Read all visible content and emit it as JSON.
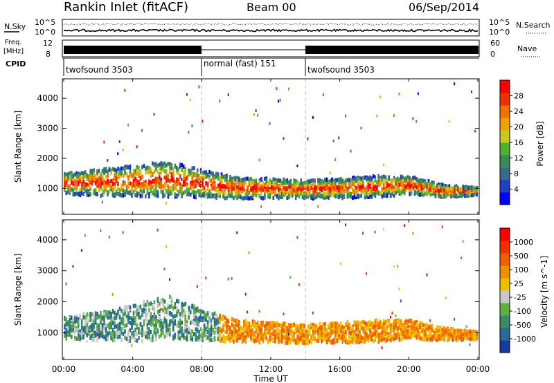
{
  "header": {
    "title": "Rankin Inlet (fitACF)",
    "beam": "Beam 00",
    "date": "06/Sep/2014"
  },
  "status_panel": {
    "nsky_label": "N.Sky",
    "nsearch_label": "N.Search",
    "noise_ticks": [
      "10^5",
      "10^0"
    ],
    "freq_label_1": "Freq.",
    "freq_label_2": "[MHz]",
    "freq_ticks": [
      "12",
      "8"
    ],
    "nave_label": "Nave",
    "nave_ticks": [
      "60",
      "0"
    ],
    "cpid_label": "CPID",
    "cpid_segments": [
      {
        "label": "twofsound 3503",
        "start_h": 0,
        "end_h": 8
      },
      {
        "label": "normal (fast) 151",
        "start_h": 8,
        "end_h": 14
      },
      {
        "label": "twofsound 3503",
        "start_h": 14,
        "end_h": 24
      }
    ]
  },
  "time_axis": {
    "label": "Time UT",
    "ticks": [
      "00:00",
      "04:00",
      "08:00",
      "12:00",
      "16:00",
      "20:00",
      "00:00"
    ]
  },
  "power_colorbar": {
    "label": "Power [dB]",
    "ticks": [
      "28",
      "24",
      "20",
      "16",
      "12",
      "8",
      "4"
    ],
    "colors": [
      "#0000ff",
      "#2040c0",
      "#3a6a8a",
      "#3a8a5a",
      "#50b030",
      "#c8c820",
      "#f0a000",
      "#f07000",
      "#f03000",
      "#ff0000"
    ]
  },
  "velocity_colorbar": {
    "label": "Velocity [m s^-1]",
    "ticks": [
      "1000",
      "500",
      "100",
      "25",
      "-25",
      "-100",
      "-500",
      "-1000"
    ],
    "colors": [
      "#1a3aa0",
      "#2a6a9a",
      "#3a8a6a",
      "#60b040",
      "#c8c8c8",
      "#f0c000",
      "#f09000",
      "#f06000",
      "#f03000",
      "#ff0000"
    ]
  },
  "chart_data": [
    {
      "type": "heatmap",
      "title": "Power",
      "xlabel": "Time UT",
      "ylabel": "Slant Range [km]",
      "xlim_hours": [
        0,
        24
      ],
      "ylim_km": [
        180,
        4600
      ],
      "y_ticks": [
        1000,
        2000,
        3000,
        4000
      ],
      "colorbar_label": "Power [dB]",
      "colorbar_range": [
        0,
        30
      ],
      "main_echo_band": {
        "x_hours": [
          0,
          2,
          4,
          6,
          8,
          10,
          12,
          14,
          16,
          18,
          20,
          22,
          24
        ],
        "center_km": [
          1150,
          1200,
          1250,
          1300,
          1150,
          1000,
          1000,
          950,
          1000,
          1050,
          1100,
          900,
          900
        ],
        "width_km": [
          700,
          900,
          1000,
          1200,
          900,
          700,
          650,
          600,
          650,
          700,
          600,
          400,
          250
        ]
      }
    },
    {
      "type": "heatmap",
      "title": "Velocity",
      "xlabel": "Time UT",
      "ylabel": "Slant Range [km]",
      "xlim_hours": [
        0,
        24
      ],
      "ylim_km": [
        180,
        4600
      ],
      "y_ticks": [
        1000,
        2000,
        3000,
        4000
      ],
      "colorbar_label": "Velocity [m s^-1]",
      "colorbar_range": [
        -1000,
        1000
      ],
      "main_echo_band": {
        "x_hours": [
          0,
          2,
          4,
          6,
          8,
          10,
          12,
          14,
          16,
          18,
          20,
          22,
          24
        ],
        "center_km": [
          1150,
          1200,
          1300,
          1500,
          1250,
          1050,
          1000,
          950,
          1000,
          1050,
          1100,
          950,
          900
        ],
        "width_km": [
          700,
          900,
          1200,
          1400,
          1000,
          700,
          650,
          600,
          650,
          700,
          600,
          400,
          250
        ]
      }
    }
  ]
}
